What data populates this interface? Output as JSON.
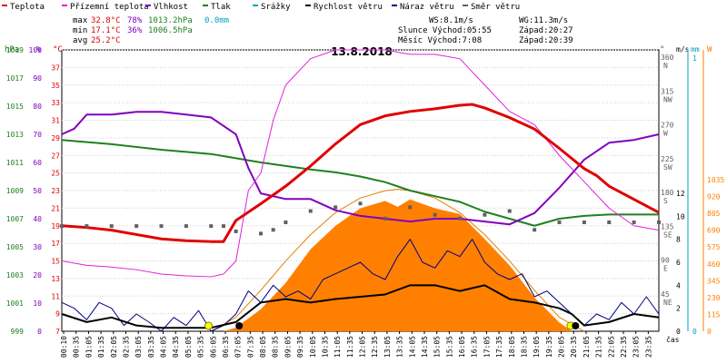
{
  "chart_data": {
    "type": "line",
    "title": "13.8.2018",
    "legend": [
      {
        "name": "Teplota",
        "color": "#e00000"
      },
      {
        "name": "Přízemní teplota",
        "color": "#e020e0"
      },
      {
        "name": "Vlhkost",
        "color": "#8000c0"
      },
      {
        "name": "Tlak",
        "color": "#208020"
      },
      {
        "name": "Srážky",
        "color": "#00a0c0"
      },
      {
        "name": "Rychlost větru",
        "color": "#000000"
      },
      {
        "name": "Náraz větru",
        "color": "#000080"
      },
      {
        "name": "Směr větru",
        "color": "#606060"
      }
    ],
    "stats": {
      "max": {
        "label": "max",
        "temp": "32.8°C",
        "hum": "78%",
        "press": "1013.2hPa",
        "rain": "0.0mm"
      },
      "min": {
        "label": "min",
        "temp": "17.1°C",
        "hum": "36%",
        "press": "1006.5hPa"
      },
      "avg": {
        "label": "avg",
        "temp": "25.2°C"
      }
    },
    "info": {
      "ws": "WS:8.1m/s",
      "wg": "WG:11.3m/s",
      "sun": "Slunce Východ:05:55",
      "sunset": "Západ:20:27",
      "moon": "Měsíc  Východ:7:08",
      "moonset": "Západ:20:39"
    },
    "axes": {
      "hpa_label": "hPa",
      "pct_label": "%",
      "degc_label": "°C",
      "dir_label": "°",
      "ms_label": "m/s",
      "mm_label": "mm",
      "w_label": "W",
      "time_label": "čas",
      "hpa_ticks": [
        "999",
        "1001",
        "1003",
        "1005",
        "1007",
        "1009",
        "1011",
        "1013",
        "1015",
        "1017",
        "1019"
      ],
      "pct_ticks": [
        "0",
        "10",
        "20",
        "30",
        "40",
        "50",
        "60",
        "70",
        "80",
        "90",
        "100"
      ],
      "degc_ticks": [
        "7",
        "9",
        "11",
        "13",
        "15",
        "17",
        "19",
        "21",
        "23",
        "25",
        "27",
        "29",
        "31",
        "33",
        "35",
        "37",
        "39"
      ],
      "dir_ticks": [
        {
          "deg": "45",
          "name": "NE"
        },
        {
          "deg": "90",
          "name": "E"
        },
        {
          "deg": "135",
          "name": "SE"
        },
        {
          "deg": "180",
          "name": "S"
        },
        {
          "deg": "225",
          "name": "SW"
        },
        {
          "deg": "270",
          "name": "W"
        },
        {
          "deg": "315",
          "name": "NW"
        },
        {
          "deg": "360",
          "name": "N"
        }
      ],
      "ms_ticks": [
        "0",
        "2",
        "4",
        "6",
        "8",
        "10",
        "12"
      ],
      "mm_ticks": [
        "0",
        "1"
      ],
      "w_ticks": [
        "0",
        "115",
        "230",
        "345",
        "460",
        "575",
        "690",
        "805",
        "920",
        "1035"
      ],
      "time_ticks": [
        "00:10",
        "00:35",
        "01:05",
        "01:35",
        "02:05",
        "02:35",
        "03:05",
        "03:35",
        "04:05",
        "04:35",
        "05:05",
        "05:35",
        "06:05",
        "06:35",
        "07:05",
        "07:35",
        "08:05",
        "08:35",
        "09:05",
        "09:35",
        "10:05",
        "10:35",
        "11:05",
        "11:35",
        "12:05",
        "12:35",
        "13:05",
        "13:35",
        "14:05",
        "14:35",
        "15:05",
        "15:35",
        "16:05",
        "16:35",
        "17:05",
        "17:35",
        "18:05",
        "18:35",
        "19:05",
        "19:35",
        "20:05",
        "20:35",
        "21:05",
        "21:35",
        "22:05",
        "22:35",
        "23:05",
        "23:35"
      ]
    },
    "series_hours": {
      "temperature": {
        "x": [
          0,
          1,
          2,
          3,
          4,
          5,
          6,
          6.5,
          7,
          8,
          9,
          10,
          11,
          12,
          13,
          14,
          15,
          16,
          16.5,
          17,
          18,
          19,
          20,
          21,
          21.5,
          22,
          23,
          24
        ],
        "y": [
          19,
          18.8,
          18.5,
          18,
          17.5,
          17.3,
          17.2,
          17.2,
          19.6,
          21.5,
          23.5,
          25.8,
          28.3,
          30.5,
          31.5,
          32,
          32.3,
          32.7,
          32.8,
          32.4,
          31.3,
          30,
          27.8,
          25.5,
          24.7,
          23.5,
          22,
          20.5
        ]
      },
      "ground_temperature": {
        "x": [
          0,
          1,
          2,
          3,
          4,
          5,
          6,
          6.5,
          7,
          7.5,
          8,
          8.5,
          9,
          10,
          11,
          12,
          13,
          14,
          15,
          16,
          17,
          18,
          19,
          20,
          21,
          22,
          23,
          24
        ],
        "y": [
          15,
          14.5,
          14.3,
          14,
          13.5,
          13.3,
          13.2,
          13.5,
          15,
          23,
          25,
          31,
          35,
          38,
          39,
          39,
          39,
          38.5,
          38.5,
          38,
          35,
          32,
          30.5,
          27,
          24,
          21,
          19,
          18.5
        ]
      },
      "humidity": {
        "x": [
          0,
          0.5,
          1,
          2,
          3,
          4,
          5,
          6,
          7,
          7.5,
          8,
          9,
          10,
          11,
          12,
          13,
          14,
          15,
          16,
          17,
          18,
          19,
          20,
          21,
          22,
          23,
          24
        ],
        "y": [
          70,
          72,
          77,
          77,
          78,
          78,
          77,
          76,
          70,
          58,
          49,
          47,
          47,
          43,
          41,
          40,
          39,
          40,
          40,
          39,
          38,
          42,
          51,
          61,
          67,
          68,
          70
        ]
      },
      "pressure": {
        "x": [
          0,
          2,
          4,
          6,
          8,
          10,
          11,
          12,
          13,
          14,
          15,
          16,
          17,
          18,
          19,
          20,
          21,
          22,
          23,
          24
        ],
        "y": [
          1012.6,
          1012.3,
          1011.9,
          1011.6,
          1011.0,
          1010.5,
          1010.3,
          1010.0,
          1009.6,
          1009.0,
          1008.6,
          1008.2,
          1007.5,
          1007.0,
          1006.5,
          1007.0,
          1007.2,
          1007.3,
          1007.3,
          1007.3
        ]
      },
      "wind_speed": {
        "x": [
          0,
          1,
          2,
          3,
          4,
          5,
          6,
          7,
          8,
          9,
          10,
          11,
          12,
          13,
          14,
          15,
          16,
          17,
          18,
          19,
          20,
          20.5,
          21,
          22,
          23,
          24
        ],
        "y": [
          1.5,
          0.8,
          1.2,
          0.5,
          0.3,
          0.3,
          0.3,
          0.8,
          2.5,
          2.8,
          2.5,
          2.8,
          3,
          3.2,
          4,
          4,
          3.5,
          4,
          2.8,
          2.5,
          2,
          1.5,
          0.5,
          0.8,
          1.5,
          1.2
        ]
      },
      "wind_gust": {
        "x": [
          0,
          0.5,
          1,
          1.5,
          2,
          2.5,
          3,
          3.5,
          4,
          4.5,
          5,
          5.5,
          6,
          6.5,
          7,
          7.5,
          8,
          8.5,
          9,
          9.5,
          10,
          10.5,
          11,
          11.5,
          12,
          12.5,
          13,
          13.5,
          14,
          14.5,
          15,
          15.5,
          16,
          16.5,
          17,
          17.5,
          18,
          18.5,
          19,
          19.5,
          20,
          20.5,
          21,
          21.5,
          22,
          22.5,
          23,
          23.5,
          24
        ],
        "y": [
          2.5,
          2,
          1,
          2.5,
          2,
          0.5,
          1.5,
          0.8,
          0,
          1.2,
          0.5,
          1.8,
          0,
          0.5,
          1.5,
          3.5,
          2.5,
          4,
          3,
          3.5,
          2.8,
          4.5,
          5,
          5.5,
          6,
          5,
          4.5,
          6.5,
          8,
          6,
          5.5,
          7,
          6.5,
          8,
          6,
          5,
          4.5,
          5,
          3,
          3.5,
          2.5,
          1.5,
          0.5,
          1.5,
          1,
          2.5,
          1.5,
          3,
          1.5
        ]
      },
      "wind_direction": {
        "x": [
          0,
          1,
          2,
          3,
          4,
          5,
          6,
          6.5,
          7,
          8,
          8.5,
          9,
          10,
          11,
          12,
          13,
          14,
          15,
          16,
          17,
          18,
          19,
          20,
          21,
          22,
          23,
          24
        ],
        "y": [
          140,
          140,
          140,
          140,
          140,
          140,
          140,
          140,
          133,
          130,
          135,
          145,
          160,
          165,
          170,
          150,
          165,
          155,
          150,
          155,
          160,
          135,
          145,
          145,
          145,
          145,
          145
        ]
      },
      "solar": {
        "x": [
          6.5,
          7,
          8,
          9,
          10,
          11,
          12,
          13,
          13.5,
          14,
          15,
          16,
          17,
          18,
          19,
          20,
          20.5
        ],
        "y": [
          0,
          25,
          150,
          330,
          560,
          720,
          840,
          890,
          850,
          900,
          840,
          800,
          630,
          450,
          230,
          60,
          0
        ]
      },
      "solar_theoretical": {
        "x": [
          6,
          7,
          8,
          9,
          10,
          11,
          12,
          13,
          13.5,
          14,
          15,
          16,
          17,
          18,
          19,
          20,
          21
        ],
        "y": [
          0,
          95,
          280,
          480,
          660,
          810,
          910,
          960,
          970,
          960,
          910,
          810,
          660,
          480,
          280,
          95,
          0
        ]
      }
    },
    "markers": {
      "sunrise_hour": 5.9,
      "sunset_hour": 20.45,
      "moonrise_hour": 7.13,
      "moonset_hour": 20.65
    },
    "colors": {
      "temp": "#e00000",
      "ground": "#e020e0",
      "humidity": "#8000c0",
      "pressure": "#208020",
      "rain": "#00a0c0",
      "wind": "#000000",
      "gust": "#000080",
      "direction": "#606060",
      "solar": "#ff8000",
      "solar_theory": "#e08000",
      "grid": "#d0d0d0"
    }
  }
}
